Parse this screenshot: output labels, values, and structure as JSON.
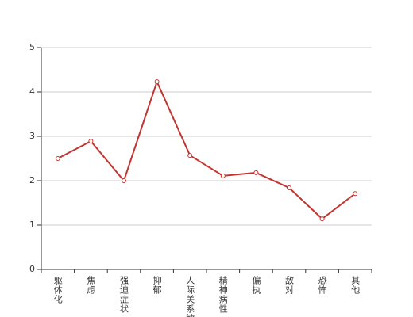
{
  "chart_data": {
    "type": "line",
    "categories": [
      "躯体化",
      "焦虑",
      "强迫症状",
      "抑郁",
      "人际关系敏感",
      "精神病性",
      "偏执",
      "敌对",
      "恐怖",
      "其他"
    ],
    "series": [
      {
        "color": "#c23531",
        "values": [
          2.5,
          2.89,
          2.0,
          4.23,
          2.57,
          2.11,
          2.18,
          1.84,
          1.14,
          1.71
        ]
      }
    ],
    "ylim": [
      0,
      5
    ],
    "yticks": [
      0,
      1,
      2,
      3,
      4,
      5
    ],
    "grid": true
  }
}
